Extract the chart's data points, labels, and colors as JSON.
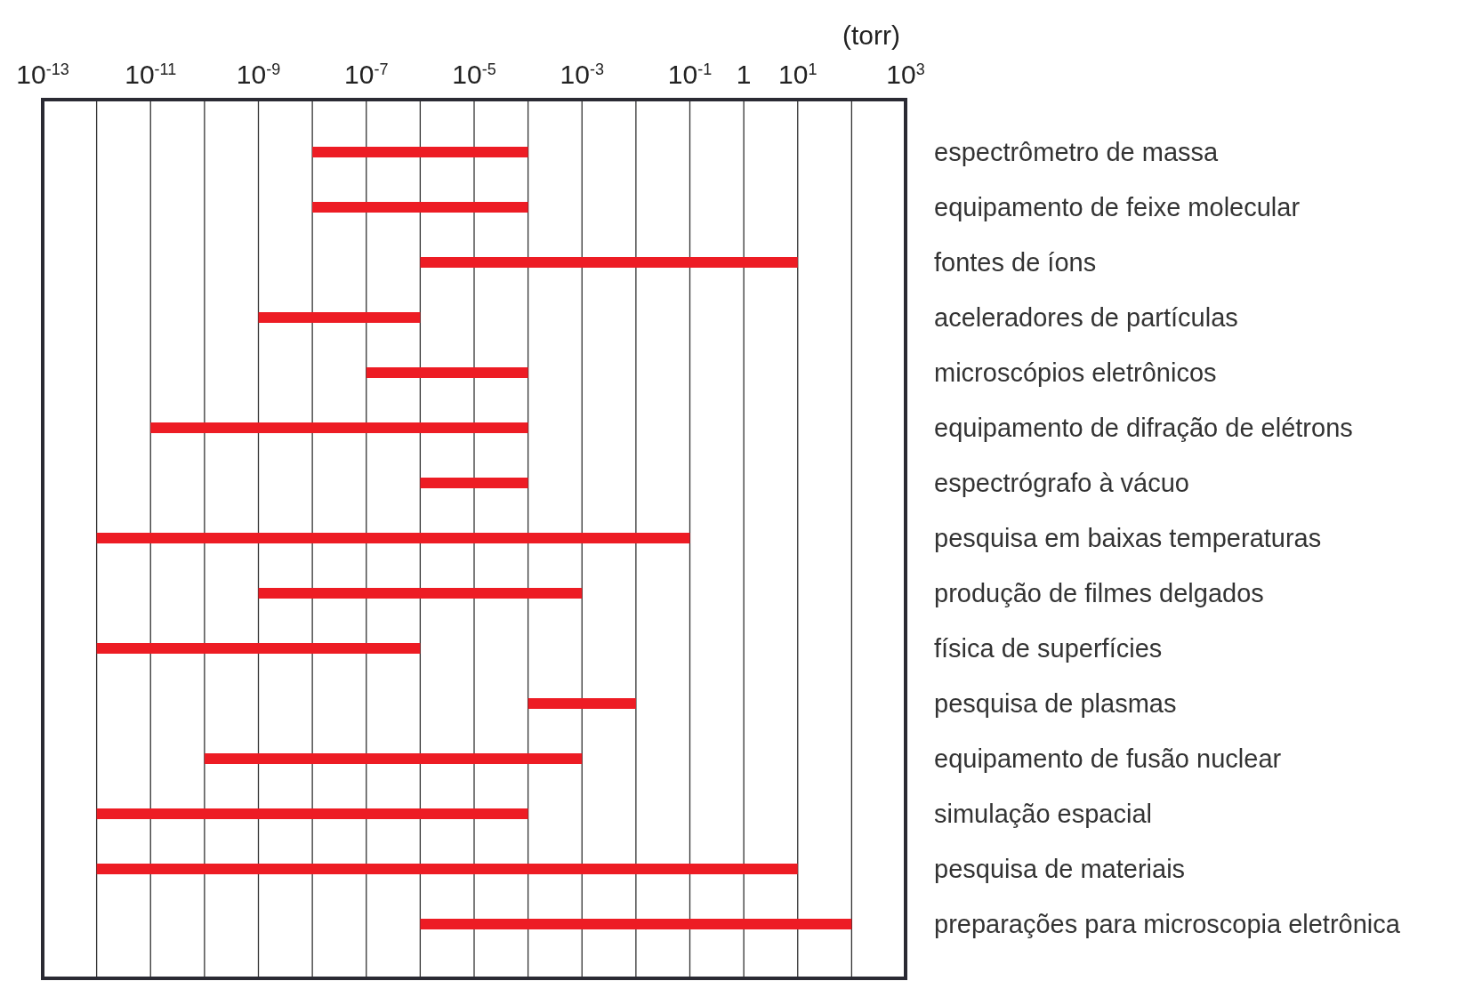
{
  "chart_data": {
    "type": "bar",
    "orientation": "horizontal",
    "log": "x",
    "xlabel": "(torr)",
    "categories": [
      "espectrômetro de massa",
      "equipamento de feixe molecular",
      "fontes de íons",
      "aceleradores de partículas",
      "microscópios eletrônicos",
      "equipamento de difração de elétrons",
      "espectrógrafo à vácuo",
      "pesquisa em baixas temperaturas",
      "produção de filmes delgados",
      "física de superfícies",
      "pesquisa de plasmas",
      "equipamento de fusão nuclear",
      "simulação espacial",
      "pesquisa de materiais",
      "preparações para microscopia eletrônica"
    ],
    "base": [
      1e-08,
      1e-08,
      1e-06,
      1e-09,
      1e-07,
      1e-11,
      1e-06,
      1e-12,
      1e-09,
      1e-12,
      0.0001,
      1e-10,
      1e-12,
      1e-12,
      1e-06
    ],
    "values": [
      9.999e-05,
      9.999e-05,
      9.999999,
      9.99e-07,
      9.99e-05,
      9.999999e-05,
      9.9e-05,
      0.099999999999,
      0.000999999,
      9.99999e-07,
      0.0099,
      0.0009999999,
      9.9999999e-05,
      9.999999999999,
      99.999999
    ],
    "color": "#ed1c24",
    "xlim": [
      1e-13,
      1000
    ],
    "xticks": [
      {
        "value": 1e-13,
        "label": "10$^{-13}$"
      },
      {
        "value": 1e-12,
        "label": null
      },
      {
        "value": 1e-11,
        "label": "10$^{-11}$"
      },
      {
        "value": 1e-10,
        "label": null
      },
      {
        "value": 1e-09,
        "label": "10$^{-9}$"
      },
      {
        "value": 1e-08,
        "label": null
      },
      {
        "value": 1e-07,
        "label": "10$^{-7}$"
      },
      {
        "value": 1e-06,
        "label": null
      },
      {
        "value": 1e-05,
        "label": "10$^{-5}$"
      },
      {
        "value": 0.0001,
        "label": null
      },
      {
        "value": 0.001,
        "label": "10$^{-3}$"
      },
      {
        "value": 0.01,
        "label": null
      },
      {
        "value": 0.1,
        "label": "10$^{-1}$"
      },
      {
        "value": 1,
        "label": "1"
      },
      {
        "value": 10,
        "label": "10$^{1}$"
      },
      {
        "value": 100,
        "label": null
      },
      {
        "value": 1000,
        "label": "10$^{3}$"
      }
    ],
    "grid": "x"
  }
}
